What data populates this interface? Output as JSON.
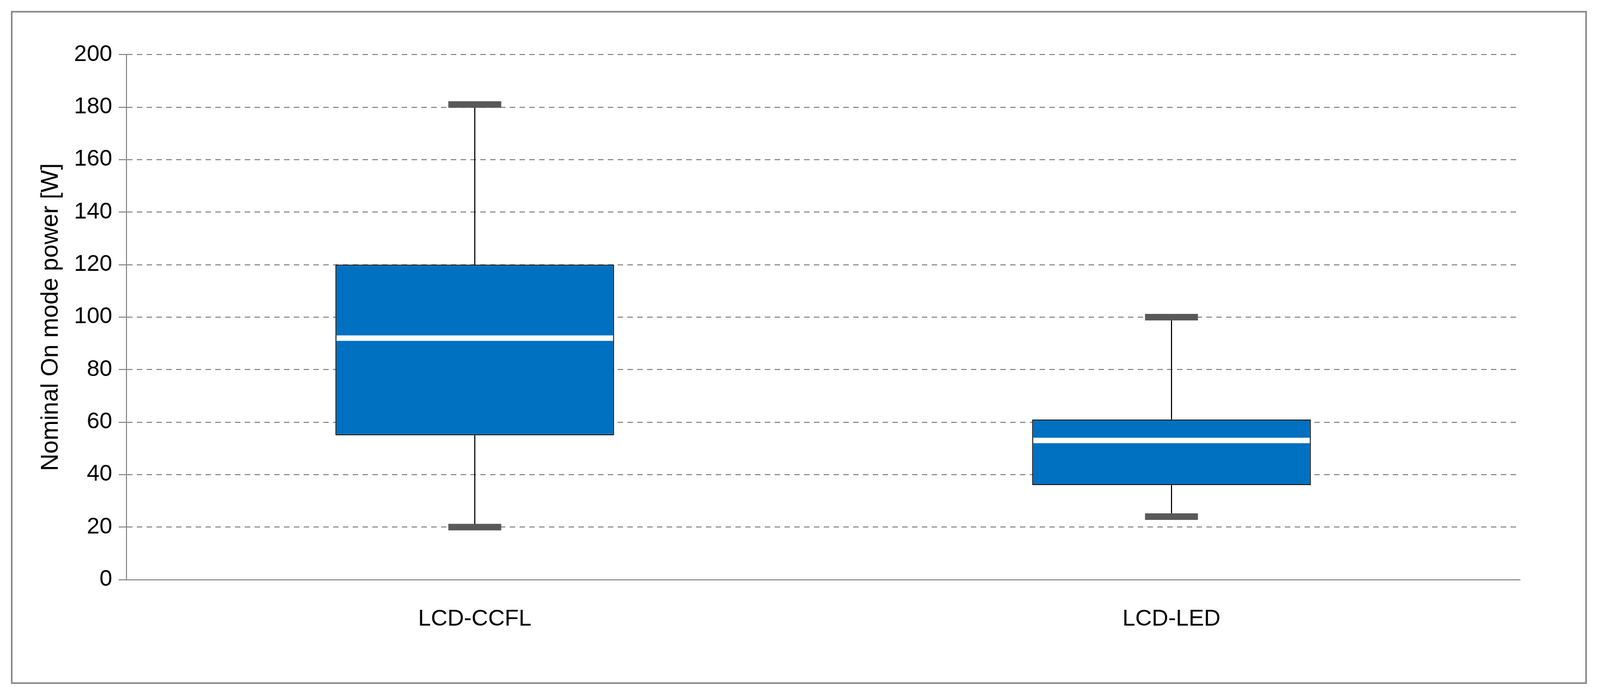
{
  "chart_data": {
    "type": "boxplot",
    "y_label": "Nominal On mode power [W]",
    "categories": [
      "LCD-CCFL",
      "LCD-LED"
    ],
    "min": [
      20,
      24
    ],
    "q1": [
      55,
      36
    ],
    "median": [
      92,
      53
    ],
    "q3": [
      120,
      61
    ],
    "max": [
      181,
      100
    ],
    "color": "#0070c0",
    "ylim": [
      0,
      200
    ],
    "yticks": [
      0,
      20,
      40,
      60,
      80,
      100,
      120,
      140,
      160,
      180,
      200
    ],
    "grid": true
  }
}
